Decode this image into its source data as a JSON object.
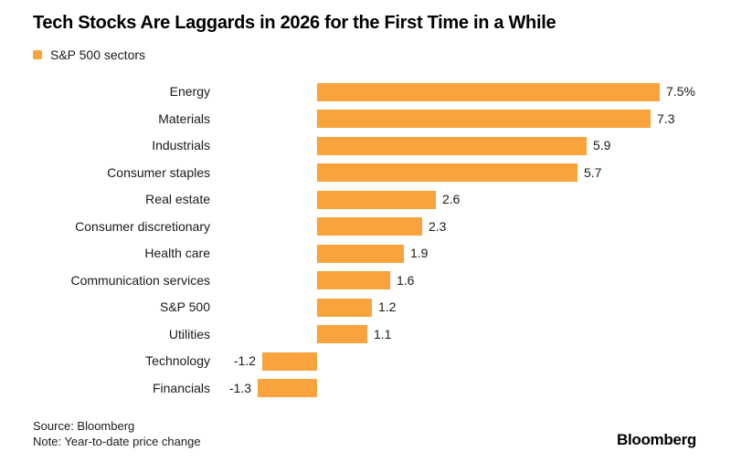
{
  "title": "Tech Stocks Are Laggards in 2026 for the First Time in a While",
  "legend": {
    "label": "S&P 500 sectors"
  },
  "chart_data": {
    "type": "bar",
    "orientation": "horizontal",
    "title": "Tech Stocks Are Laggards in 2026 for the First Time in a While",
    "xlabel": "",
    "ylabel": "",
    "categories": [
      "Energy",
      "Materials",
      "Industrials",
      "Consumer staples",
      "Real estate",
      "Consumer discretionary",
      "Health care",
      "Communication services",
      "S&P 500",
      "Utilities",
      "Technology",
      "Financials"
    ],
    "values": [
      7.5,
      7.3,
      5.9,
      5.7,
      2.6,
      2.3,
      1.9,
      1.6,
      1.2,
      1.1,
      -1.2,
      -1.3
    ],
    "value_labels": [
      "7.5%",
      "7.3",
      "5.9",
      "5.7",
      "2.6",
      "2.3",
      "1.9",
      "1.6",
      "1.2",
      "1.1",
      "-1.2",
      "-1.3"
    ],
    "xlim": [
      -2.3,
      9.1
    ],
    "grid": false,
    "legend_position": "top-left",
    "bar_color": "#F8A33C"
  },
  "footer": {
    "source": "Source: Bloomberg",
    "note": "Note: Year-to-date price change",
    "logo": "Bloomberg"
  },
  "colors": {
    "accent": "#F8A33C",
    "text": "#1A1A1A",
    "title": "#000000"
  }
}
